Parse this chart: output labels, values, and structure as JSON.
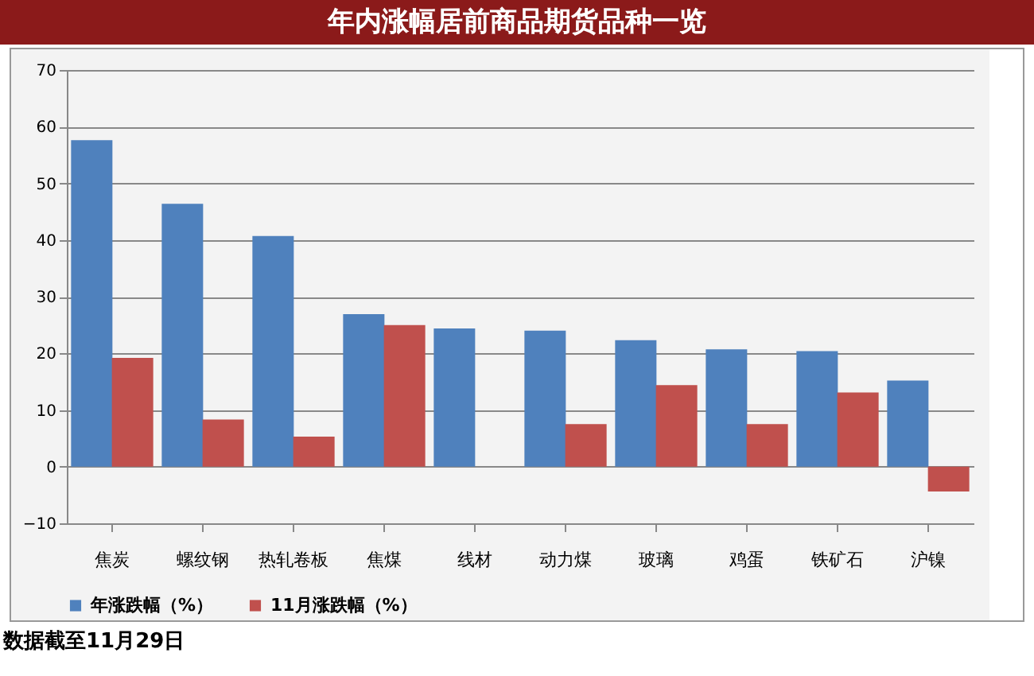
{
  "chart_data": {
    "type": "bar",
    "title": "年内涨幅居前商品期货品种一览",
    "categories": [
      "焦炭",
      "螺纹钢",
      "热轧卷板",
      "焦煤",
      "线材",
      "动力煤",
      "玻璃",
      "鸡蛋",
      "铁矿石",
      "沪镍"
    ],
    "series": [
      {
        "name": "年涨跌幅（%）",
        "color": "#4f81bd",
        "values": [
          57.6,
          46.4,
          40.7,
          26.9,
          24.4,
          24.0,
          22.3,
          20.7,
          20.4,
          15.2
        ]
      },
      {
        "name": "11月涨跌幅（%）",
        "color": "#c0504d",
        "values": [
          19.2,
          8.3,
          5.3,
          25.0,
          null,
          7.5,
          14.4,
          7.5,
          13.1,
          -4.4
        ]
      }
    ],
    "ylim": [
      -10,
      70
    ],
    "yticks": [
      -10,
      0,
      10,
      20,
      30,
      40,
      50,
      60,
      70
    ],
    "grid": "y",
    "legend": "bottom",
    "annotations": [
      "数据截至11月29日"
    ]
  }
}
